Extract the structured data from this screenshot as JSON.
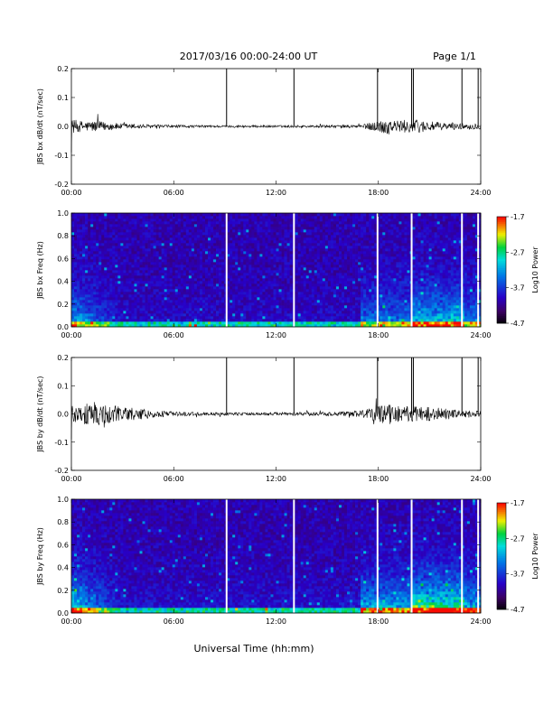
{
  "header": {
    "title": "2017/03/16  00:00-24:00 UT",
    "page": "Page 1/1"
  },
  "footer": {
    "xlabel": "Universal Time (hh:mm)"
  },
  "colors": {
    "trace": "#000000",
    "gap_line": "#ffffff",
    "background": "#ffffff"
  },
  "chart_data": [
    {
      "type": "line",
      "ylabel": "JBS bx dB/dt (nT/sec)",
      "xlim": [
        0,
        24
      ],
      "ylim": [
        -0.2,
        0.2
      ],
      "yticks": [
        "0.2",
        "0.1",
        "0.0",
        "-0.1",
        "-0.2"
      ],
      "xticks": [
        "00:00",
        "06:00",
        "12:00",
        "18:00",
        "24:00"
      ],
      "spikes_hours": [
        9.1,
        13.05,
        17.95,
        19.95,
        20.05,
        22.9,
        23.85
      ],
      "envelope": {
        "hours": [
          0,
          0.5,
          1,
          1.5,
          2,
          3,
          4,
          5,
          6,
          8,
          10,
          12,
          14,
          16,
          17,
          18,
          18.5,
          19,
          20,
          21,
          22,
          23,
          24
        ],
        "amplitude": [
          0.025,
          0.02,
          0.018,
          0.02,
          0.015,
          0.01,
          0.008,
          0.006,
          0.005,
          0.004,
          0.004,
          0.004,
          0.004,
          0.005,
          0.006,
          0.02,
          0.03,
          0.02,
          0.025,
          0.018,
          0.012,
          0.01,
          0.01
        ]
      }
    },
    {
      "type": "heatmap",
      "ylabel": "JBS bx Freq (Hz)",
      "colorbar_label": "Log10 Power",
      "colorbar_ticks": [
        "-1.7",
        "-2.7",
        "-3.7",
        "-4.7"
      ],
      "clim": [
        -4.7,
        -1.7
      ],
      "xlim": [
        0,
        24
      ],
      "ylim": [
        0.0,
        1.0
      ],
      "yticks": [
        "1.0",
        "0.8",
        "0.6",
        "0.4",
        "0.2",
        "0.0"
      ],
      "xticks": [
        "00:00",
        "06:00",
        "12:00",
        "18:00",
        "24:00"
      ],
      "gaps_hours": [
        9.1,
        13.05,
        17.95,
        19.95,
        22.9,
        23.85
      ]
    },
    {
      "type": "line",
      "ylabel": "JBS by dB/dt (nT/sec)",
      "xlim": [
        0,
        24
      ],
      "ylim": [
        -0.2,
        0.2
      ],
      "yticks": [
        "0.2",
        "0.1",
        "0.0",
        "-0.1",
        "-0.2"
      ],
      "xticks": [
        "00:00",
        "06:00",
        "12:00",
        "18:00",
        "24:00"
      ],
      "spikes_hours": [
        9.1,
        13.05,
        17.95,
        19.95,
        20.05,
        22.9,
        23.85
      ],
      "envelope": {
        "hours": [
          0,
          0.5,
          1,
          1.5,
          2,
          3,
          4,
          5,
          6,
          8,
          10,
          12,
          14,
          16,
          17,
          18,
          18.5,
          19,
          20,
          21,
          22,
          23,
          24
        ],
        "amplitude": [
          0.03,
          0.035,
          0.04,
          0.045,
          0.035,
          0.025,
          0.02,
          0.012,
          0.008,
          0.006,
          0.005,
          0.006,
          0.006,
          0.008,
          0.012,
          0.03,
          0.04,
          0.03,
          0.03,
          0.025,
          0.02,
          0.012,
          0.012
        ]
      }
    },
    {
      "type": "heatmap",
      "ylabel": "JBS by Freq (Hz)",
      "colorbar_label": "Log10 Power",
      "colorbar_ticks": [
        "-1.7",
        "-2.7",
        "-3.7",
        "-4.7"
      ],
      "clim": [
        -4.7,
        -1.7
      ],
      "xlim": [
        0,
        24
      ],
      "ylim": [
        0.0,
        1.0
      ],
      "yticks": [
        "1.0",
        "0.8",
        "0.6",
        "0.4",
        "0.2",
        "0.0"
      ],
      "xticks": [
        "00:00",
        "06:00",
        "12:00",
        "18:00",
        "24:00"
      ],
      "gaps_hours": [
        9.1,
        13.05,
        17.95,
        19.95,
        22.9,
        23.85
      ]
    }
  ]
}
